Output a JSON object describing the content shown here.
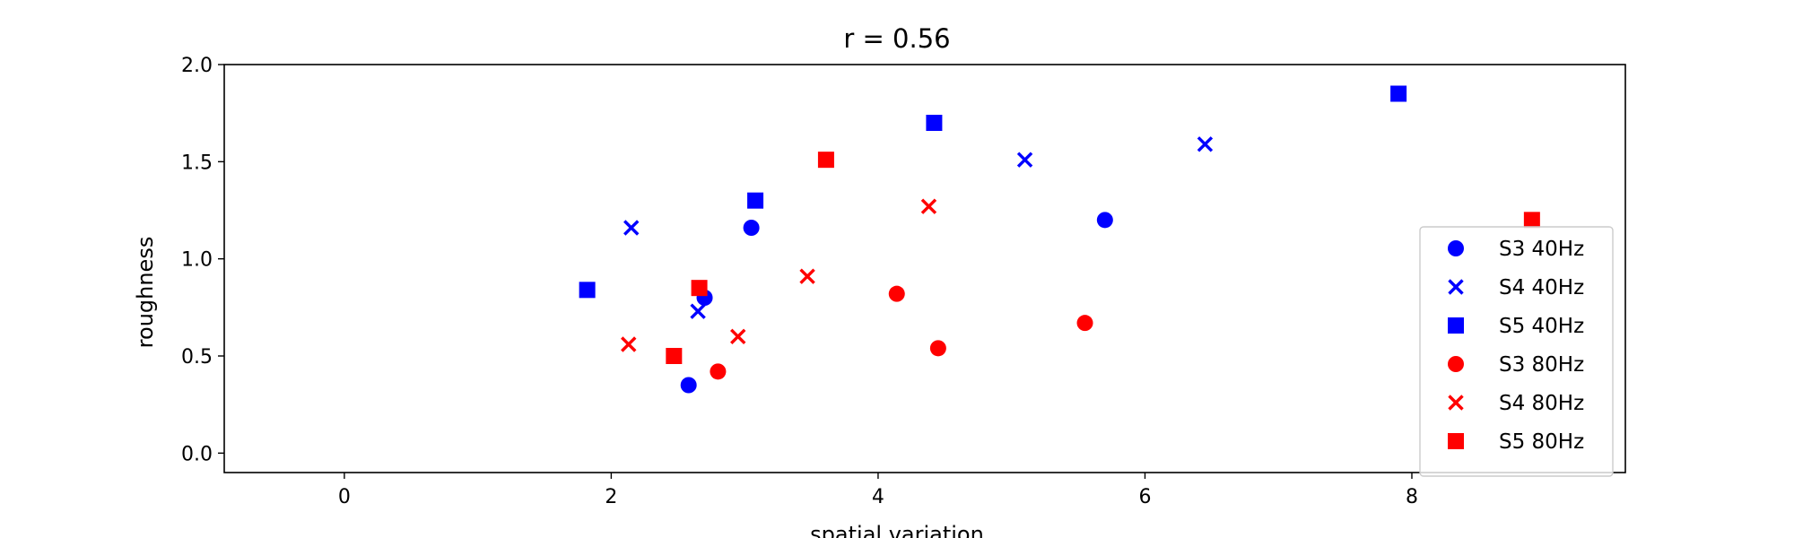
{
  "chart_data": {
    "type": "scatter",
    "title": "r = 0.56",
    "xlabel": "spatial variation",
    "ylabel": "roughness",
    "xlim": [
      -0.9,
      9.6
    ],
    "ylim": [
      -0.1,
      2.0
    ],
    "xticks": [
      0,
      2,
      4,
      6,
      8
    ],
    "yticks": [
      0.0,
      0.5,
      1.0,
      1.5,
      2.0
    ],
    "ytick_labels": [
      "0.0",
      "0.5",
      "1.0",
      "1.5",
      "2.0"
    ],
    "grid": false,
    "legend_position": "lower-right",
    "series": [
      {
        "name": "S3 40Hz",
        "marker": "circle",
        "color": "#0000ff",
        "points": [
          [
            2.58,
            0.35
          ],
          [
            2.7,
            0.8
          ],
          [
            3.05,
            1.16
          ],
          [
            5.7,
            1.2
          ]
        ]
      },
      {
        "name": "S4 40Hz",
        "marker": "x",
        "color": "#0000ff",
        "points": [
          [
            2.15,
            1.16
          ],
          [
            2.65,
            0.73
          ],
          [
            5.1,
            1.51
          ],
          [
            6.45,
            1.59
          ]
        ]
      },
      {
        "name": "S5 40Hz",
        "marker": "square",
        "color": "#0000ff",
        "points": [
          [
            1.82,
            0.84
          ],
          [
            3.08,
            1.3
          ],
          [
            4.42,
            1.7
          ],
          [
            7.9,
            1.85
          ]
        ]
      },
      {
        "name": "S3 80Hz",
        "marker": "circle",
        "color": "#ff0000",
        "points": [
          [
            2.8,
            0.42
          ],
          [
            4.14,
            0.82
          ],
          [
            4.45,
            0.54
          ],
          [
            5.55,
            0.67
          ]
        ]
      },
      {
        "name": "S4 80Hz",
        "marker": "x",
        "color": "#ff0000",
        "points": [
          [
            2.13,
            0.56
          ],
          [
            2.95,
            0.6
          ],
          [
            3.47,
            0.91
          ],
          [
            4.38,
            1.27
          ]
        ]
      },
      {
        "name": "S5 80Hz",
        "marker": "square",
        "color": "#ff0000",
        "points": [
          [
            2.47,
            0.5
          ],
          [
            2.66,
            0.85
          ],
          [
            3.61,
            1.51
          ],
          [
            8.9,
            1.2
          ]
        ]
      }
    ]
  }
}
